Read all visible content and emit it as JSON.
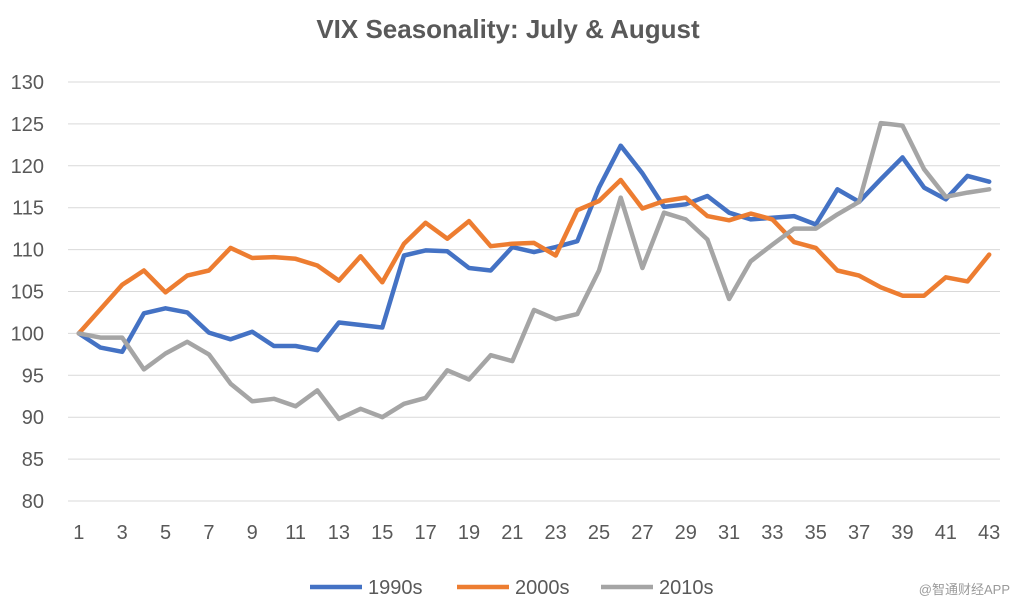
{
  "chart_data": {
    "type": "line",
    "title": "VIX Seasonality: July & August",
    "xlabel": "",
    "ylabel": "",
    "ylim": [
      80,
      130
    ],
    "yticks": [
      80,
      85,
      90,
      95,
      100,
      105,
      110,
      115,
      120,
      125,
      130
    ],
    "xlim": [
      1,
      43
    ],
    "xticks": [
      1,
      3,
      5,
      7,
      9,
      11,
      13,
      15,
      17,
      19,
      21,
      23,
      25,
      27,
      29,
      31,
      33,
      35,
      37,
      39,
      41,
      43
    ],
    "grid": "horizontal",
    "legend_position": "bottom",
    "x": [
      1,
      2,
      3,
      4,
      5,
      6,
      7,
      8,
      9,
      10,
      11,
      12,
      13,
      14,
      15,
      16,
      17,
      18,
      19,
      20,
      21,
      22,
      23,
      24,
      25,
      26,
      27,
      28,
      29,
      30,
      31,
      32,
      33,
      34,
      35,
      36,
      37,
      38,
      39,
      40,
      41,
      42,
      43
    ],
    "series": [
      {
        "name": "1990s",
        "color": "#4472c4",
        "values": [
          100,
          98.3,
          97.8,
          102.4,
          103,
          102.5,
          100.1,
          99.3,
          100.2,
          98.5,
          98.5,
          98.0,
          101.3,
          101.0,
          100.7,
          109.3,
          109.9,
          109.8,
          107.8,
          107.5,
          110.3,
          109.7,
          110.3,
          111,
          117.4,
          122.4,
          119.1,
          115.1,
          115.4,
          116.4,
          114.4,
          113.6,
          113.8,
          114.0,
          113.0,
          117.2,
          115.7,
          118.4,
          121.0,
          117.4,
          116.0,
          118.8,
          118.1
        ]
      },
      {
        "name": "2000s",
        "color": "#ed7d31",
        "values": [
          100,
          102.9,
          105.8,
          107.5,
          104.9,
          106.9,
          107.5,
          110.2,
          109.0,
          109.1,
          108.9,
          108.1,
          106.3,
          109.2,
          106.1,
          110.7,
          113.2,
          111.3,
          113.4,
          110.4,
          110.7,
          110.8,
          109.3,
          114.7,
          115.8,
          118.3,
          114.9,
          115.8,
          116.2,
          114.0,
          113.5,
          114.3,
          113.6,
          110.9,
          110.2,
          107.5,
          106.9,
          105.5,
          104.5,
          104.5,
          106.7,
          106.2,
          109.4
        ]
      },
      {
        "name": "2010s",
        "color": "#a5a5a5",
        "values": [
          100,
          99.5,
          99.5,
          95.7,
          97.6,
          99.0,
          97.5,
          94.0,
          91.9,
          92.2,
          91.3,
          93.2,
          89.8,
          91.0,
          90.0,
          91.6,
          92.3,
          95.6,
          94.5,
          97.4,
          96.7,
          102.8,
          101.7,
          102.3,
          107.5,
          116.2,
          107.8,
          114.4,
          113.6,
          111.2,
          104.1,
          108.6,
          110.6,
          112.5,
          112.5,
          114.2,
          115.7,
          125.1,
          124.8,
          119.6,
          116.3,
          116.8,
          117.2
        ]
      }
    ]
  },
  "watermark": "@智通财经APP"
}
